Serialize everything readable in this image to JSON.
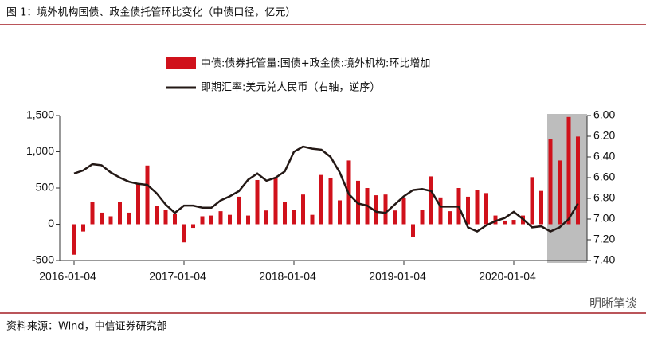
{
  "chart_data": {
    "type": "bar-line",
    "title": "图 1：境外机构国债、政金债托管环比变化（中债口径，亿元）",
    "source": "资料来源：Wind，中信证券研究部",
    "watermark": "明晰笔谈",
    "categories": [
      "2016-01-04",
      null,
      null,
      null,
      null,
      null,
      null,
      null,
      null,
      null,
      null,
      null,
      "2017-01-04",
      null,
      null,
      null,
      null,
      null,
      null,
      null,
      null,
      null,
      null,
      null,
      "2018-01-04",
      null,
      null,
      null,
      null,
      null,
      null,
      null,
      null,
      null,
      null,
      null,
      "2019-01-04",
      null,
      null,
      null,
      null,
      null,
      null,
      null,
      null,
      null,
      null,
      null,
      "2020-01-04",
      null,
      null,
      null,
      null,
      null,
      null,
      null
    ],
    "series": [
      {
        "name": "中债:债券托管量:国债+政金债:境外机构:环比增加",
        "color": "#d0111b",
        "type": "bar",
        "axis": "y",
        "values": [
          -420,
          -100,
          310,
          160,
          110,
          310,
          160,
          560,
          810,
          250,
          200,
          140,
          -250,
          -50,
          110,
          120,
          180,
          130,
          380,
          120,
          610,
          190,
          650,
          310,
          200,
          410,
          130,
          680,
          640,
          330,
          880,
          600,
          500,
          400,
          410,
          190,
          360,
          -180,
          200,
          660,
          370,
          180,
          500,
          380,
          470,
          430,
          120,
          50,
          60,
          120,
          650,
          460,
          1170,
          880,
          1480,
          1210
        ]
      },
      {
        "name": "即期汇率:美元兑人民币（右轴，逆序）",
        "color": "#231815",
        "type": "line",
        "axis": "y2",
        "values": [
          6.56,
          6.53,
          6.47,
          6.48,
          6.55,
          6.6,
          6.64,
          6.66,
          6.67,
          6.75,
          6.86,
          6.94,
          6.87,
          6.87,
          6.89,
          6.89,
          6.82,
          6.78,
          6.73,
          6.62,
          6.56,
          6.63,
          6.6,
          6.54,
          6.35,
          6.3,
          6.32,
          6.33,
          6.4,
          6.55,
          6.76,
          6.85,
          6.87,
          6.93,
          6.94,
          6.86,
          6.78,
          6.72,
          6.71,
          6.73,
          6.88,
          6.88,
          6.88,
          7.08,
          7.12,
          7.06,
          7.02,
          6.99,
          6.93,
          7.0,
          7.08,
          7.07,
          7.12,
          7.08,
          7.0,
          6.85
        ]
      }
    ],
    "ylim": [
      -500,
      1500
    ],
    "yticks": [
      -500,
      0,
      500,
      {
        "value": 1000,
        "label": "1,000"
      },
      {
        "value": 1500,
        "label": "1,500"
      }
    ],
    "y2lim": [
      7.4,
      6.0
    ],
    "y2ticks": [
      {
        "value": 6.0,
        "label": "6.00"
      },
      {
        "value": 6.2,
        "label": "6.20"
      },
      {
        "value": 6.4,
        "label": "6.40"
      },
      {
        "value": 6.6,
        "label": "6.60"
      },
      {
        "value": 6.8,
        "label": "6.80"
      },
      {
        "value": 7.0,
        "label": "7.00"
      },
      {
        "value": 7.2,
        "label": "7.20"
      },
      {
        "value": 7.4,
        "label": "7.40"
      }
    ]
  }
}
